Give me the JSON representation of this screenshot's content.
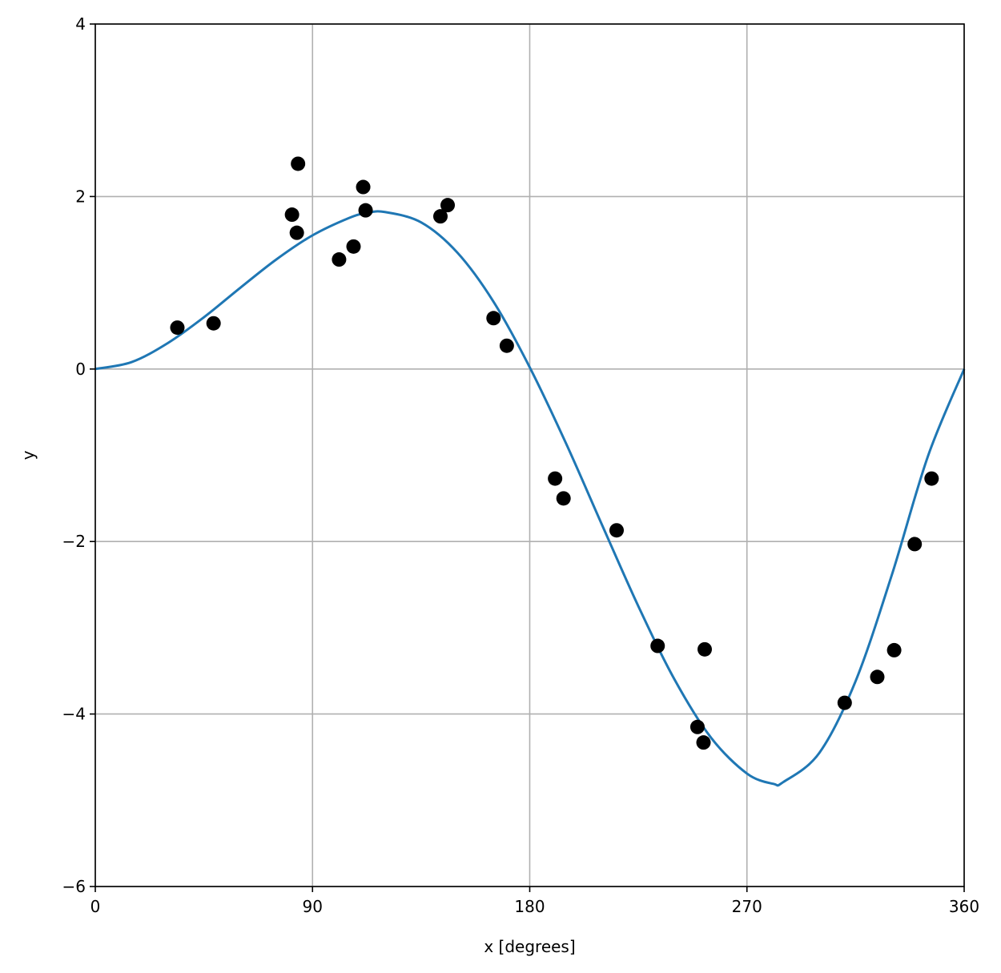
{
  "chart_data": {
    "type": "scatter",
    "xlabel": "x [degrees]",
    "ylabel": "y",
    "xlim": [
      0,
      360
    ],
    "ylim": [
      -6,
      4
    ],
    "xticks": [
      0,
      90,
      180,
      270,
      360
    ],
    "yticks": [
      -6,
      -4,
      -2,
      0,
      2,
      4
    ],
    "xtick_labels": [
      "0",
      "90",
      "180",
      "270",
      "360"
    ],
    "ytick_labels": [
      "−6",
      "−4",
      "−2",
      "0",
      "2",
      "4"
    ],
    "grid": true,
    "colors": {
      "points": "#000000",
      "curve": "#1f77b4",
      "grid": "#b0b0b0"
    },
    "scatter": {
      "x": [
        34,
        49,
        81.5,
        83.5,
        84,
        101,
        107,
        111,
        112,
        143,
        146,
        165,
        170.5,
        190.5,
        194,
        216,
        233,
        249.5,
        252,
        252.5,
        310.5,
        324,
        331,
        339.5,
        346.5
      ],
      "y": [
        0.48,
        0.53,
        1.79,
        1.58,
        2.38,
        1.27,
        1.42,
        2.11,
        1.84,
        1.77,
        1.9,
        0.59,
        0.27,
        -1.27,
        -1.5,
        -1.87,
        -3.21,
        -4.15,
        -4.33,
        -3.25,
        -3.87,
        -3.57,
        -3.26,
        -2.03,
        -1.27
      ]
    },
    "curve": {
      "x": [
        0,
        15,
        30,
        45,
        60,
        75,
        90,
        105,
        112.5,
        120,
        135,
        150,
        165,
        180,
        195,
        210,
        225,
        240,
        255,
        270,
        281,
        285,
        300,
        315,
        330,
        345,
        360
      ],
      "y": [
        0,
        0.08,
        0.3,
        0.6,
        0.94,
        1.27,
        1.55,
        1.75,
        1.81,
        1.82,
        1.7,
        1.35,
        0.78,
        0.02,
        -0.86,
        -1.81,
        -2.75,
        -3.6,
        -4.27,
        -4.69,
        -4.81,
        -4.79,
        -4.45,
        -3.62,
        -2.39,
        -1.01,
        0
      ]
    }
  }
}
